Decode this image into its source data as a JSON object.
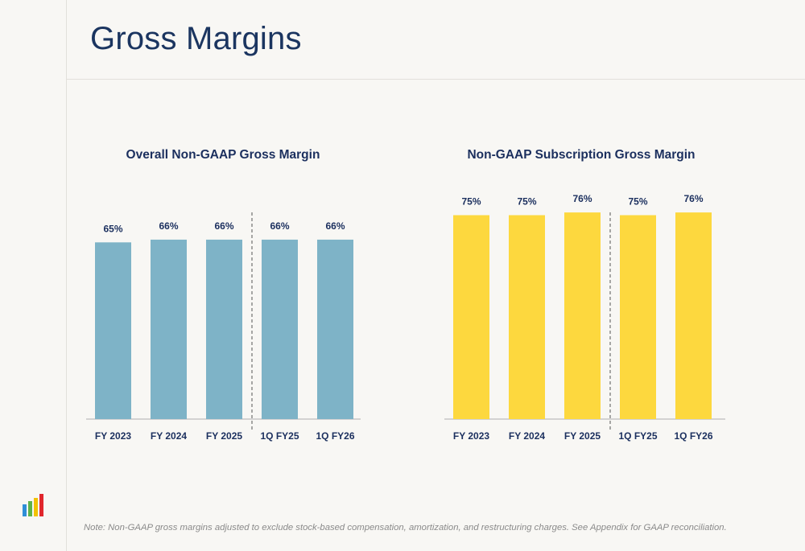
{
  "title": "Gross Margins",
  "note": "Note: Non-GAAP gross margins adjusted to exclude stock-based compensation, amortization, and restructuring charges. See Appendix for GAAP reconciliation.",
  "logo_icon": "bar-chart-logo-icon",
  "colors": {
    "title": "#1b3560",
    "label": "#1b2f5e",
    "bar_left": "#7eb3c7",
    "bar_right": "#fdd83e",
    "axis": "#bdbdbd",
    "logo": [
      "#2f8fd8",
      "#5db34a",
      "#f2c200",
      "#e0262c"
    ]
  },
  "chart_data": [
    {
      "type": "bar",
      "title": "Overall Non-GAAP Gross Margin",
      "categories": [
        "FY 2023",
        "FY 2024",
        "FY 2025",
        "1Q FY25",
        "1Q FY26"
      ],
      "values": [
        65,
        66,
        66,
        66,
        66
      ],
      "data_labels": [
        "65%",
        "66%",
        "66%",
        "66%",
        "66%"
      ],
      "unit": "%",
      "ylim": [
        0,
        100
      ],
      "divider_after_index": 2,
      "bar_color": "#7eb3c7",
      "grid": false
    },
    {
      "type": "bar",
      "title": "Non-GAAP Subscription Gross Margin",
      "categories": [
        "FY 2023",
        "FY 2024",
        "FY 2025",
        "1Q FY25",
        "1Q FY26"
      ],
      "values": [
        75,
        75,
        76,
        75,
        76
      ],
      "data_labels": [
        "75%",
        "75%",
        "76%",
        "75%",
        "76%"
      ],
      "unit": "%",
      "ylim": [
        0,
        100
      ],
      "divider_after_index": 2,
      "bar_color": "#fdd83e",
      "grid": false
    }
  ]
}
